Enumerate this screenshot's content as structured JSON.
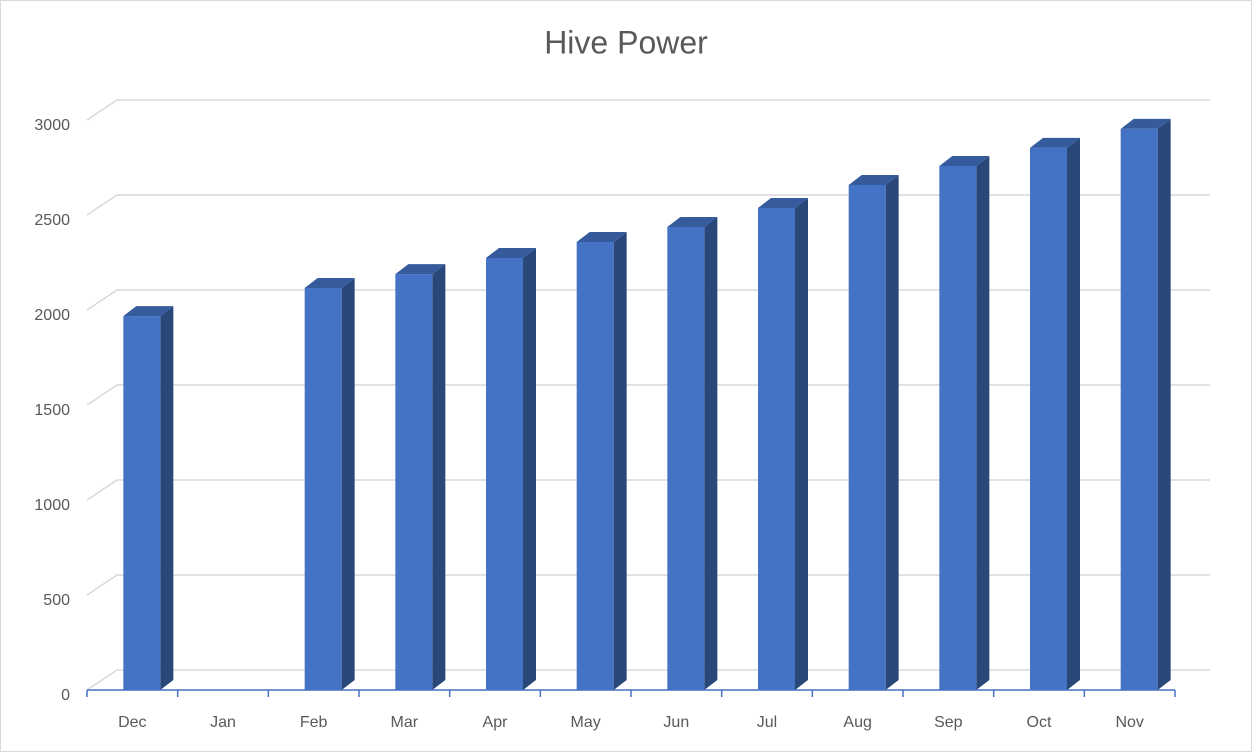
{
  "chart_data": {
    "type": "bar",
    "title": "Hive Power",
    "categories": [
      "Dec",
      "Jan",
      "Feb",
      "Mar",
      "Apr",
      "May",
      "Jun",
      "Jul",
      "Aug",
      "Sep",
      "Oct",
      "Nov"
    ],
    "values": [
      1968,
      null,
      2116,
      2189,
      2274,
      2358,
      2437,
      2537,
      2658,
      2758,
      2853,
      2953
    ],
    "color": "#4472c4",
    "ylim": [
      0,
      3000
    ],
    "yticks": [
      0,
      500,
      1000,
      1500,
      2000,
      2500,
      3000
    ],
    "grid": true
  }
}
